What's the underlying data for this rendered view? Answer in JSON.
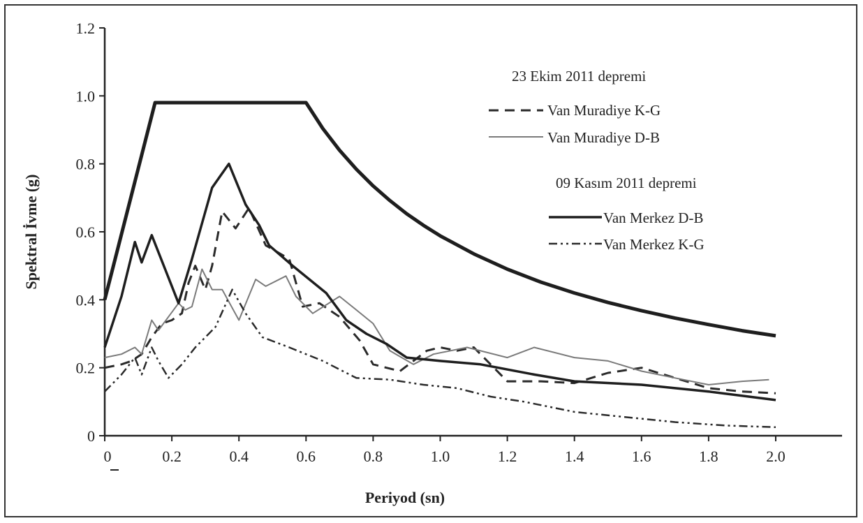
{
  "chart_data": {
    "type": "line",
    "title": "",
    "xlabel": "Periyod (sn)",
    "ylabel": "Spektral İvme (g)",
    "xlim": [
      0,
      2.2
    ],
    "ylim": [
      0,
      1.2
    ],
    "x_ticks": [
      0,
      0.2,
      0.4,
      0.6,
      0.8,
      1.0,
      1.2,
      1.4,
      1.6,
      1.8,
      2.0
    ],
    "x_tick_labels": [
      "0",
      "0.2",
      "0.4",
      "0.6",
      "0.8",
      "1.0",
      "1.2",
      "1.4",
      "1.6",
      "1.8",
      "2.0"
    ],
    "y_ticks": [
      0,
      0.2,
      0.4,
      0.6,
      0.8,
      1.0,
      1.2
    ],
    "y_tick_labels": [
      "0",
      "0.2",
      "0.4",
      "0.6",
      "0.8",
      "1.0",
      "1.2"
    ],
    "grid": false,
    "legend_position": "top-right",
    "legend_groups": [
      {
        "heading": "23 Ekim 2011 depremi",
        "series": [
          0,
          1
        ]
      },
      {
        "heading": "09 Kasım 2011 depremi",
        "series": [
          2,
          3
        ]
      }
    ],
    "series": [
      {
        "name": "Van Muradiye K-G",
        "style": "dashed",
        "color": "#2a2a2a",
        "points": [
          [
            0.0,
            0.2
          ],
          [
            0.05,
            0.21
          ],
          [
            0.08,
            0.22
          ],
          [
            0.11,
            0.24
          ],
          [
            0.14,
            0.29
          ],
          [
            0.17,
            0.33
          ],
          [
            0.2,
            0.34
          ],
          [
            0.23,
            0.36
          ],
          [
            0.25,
            0.45
          ],
          [
            0.27,
            0.5
          ],
          [
            0.3,
            0.43
          ],
          [
            0.32,
            0.5
          ],
          [
            0.35,
            0.66
          ],
          [
            0.39,
            0.61
          ],
          [
            0.43,
            0.67
          ],
          [
            0.48,
            0.56
          ],
          [
            0.55,
            0.52
          ],
          [
            0.59,
            0.38
          ],
          [
            0.64,
            0.39
          ],
          [
            0.7,
            0.35
          ],
          [
            0.76,
            0.28
          ],
          [
            0.8,
            0.21
          ],
          [
            0.88,
            0.19
          ],
          [
            0.96,
            0.25
          ],
          [
            1.0,
            0.26
          ],
          [
            1.05,
            0.25
          ],
          [
            1.1,
            0.26
          ],
          [
            1.15,
            0.21
          ],
          [
            1.2,
            0.16
          ],
          [
            1.3,
            0.16
          ],
          [
            1.4,
            0.155
          ],
          [
            1.5,
            0.185
          ],
          [
            1.6,
            0.2
          ],
          [
            1.7,
            0.17
          ],
          [
            1.8,
            0.14
          ],
          [
            1.9,
            0.13
          ],
          [
            2.0,
            0.125
          ]
        ]
      },
      {
        "name": "Van Muradiye D-B",
        "style": "thin",
        "color": "#7a7a7a",
        "points": [
          [
            0.0,
            0.23
          ],
          [
            0.05,
            0.24
          ],
          [
            0.09,
            0.26
          ],
          [
            0.11,
            0.24
          ],
          [
            0.14,
            0.34
          ],
          [
            0.16,
            0.31
          ],
          [
            0.19,
            0.35
          ],
          [
            0.22,
            0.39
          ],
          [
            0.24,
            0.37
          ],
          [
            0.26,
            0.38
          ],
          [
            0.29,
            0.49
          ],
          [
            0.32,
            0.43
          ],
          [
            0.35,
            0.43
          ],
          [
            0.4,
            0.34
          ],
          [
            0.45,
            0.46
          ],
          [
            0.48,
            0.44
          ],
          [
            0.54,
            0.47
          ],
          [
            0.57,
            0.41
          ],
          [
            0.62,
            0.36
          ],
          [
            0.7,
            0.41
          ],
          [
            0.75,
            0.37
          ],
          [
            0.8,
            0.33
          ],
          [
            0.85,
            0.25
          ],
          [
            0.92,
            0.21
          ],
          [
            0.98,
            0.24
          ],
          [
            1.08,
            0.26
          ],
          [
            1.2,
            0.23
          ],
          [
            1.28,
            0.26
          ],
          [
            1.4,
            0.23
          ],
          [
            1.5,
            0.22
          ],
          [
            1.6,
            0.19
          ],
          [
            1.7,
            0.17
          ],
          [
            1.8,
            0.15
          ],
          [
            1.9,
            0.16
          ],
          [
            1.98,
            0.165
          ]
        ]
      },
      {
        "name": "Van Merkez D-B",
        "style": "thick",
        "color": "#1e1e1e",
        "points": [
          [
            0.0,
            0.26
          ],
          [
            0.05,
            0.41
          ],
          [
            0.09,
            0.57
          ],
          [
            0.11,
            0.51
          ],
          [
            0.14,
            0.59
          ],
          [
            0.18,
            0.49
          ],
          [
            0.22,
            0.39
          ],
          [
            0.26,
            0.52
          ],
          [
            0.32,
            0.73
          ],
          [
            0.37,
            0.8
          ],
          [
            0.42,
            0.68
          ],
          [
            0.46,
            0.62
          ],
          [
            0.49,
            0.56
          ],
          [
            0.56,
            0.5
          ],
          [
            0.66,
            0.42
          ],
          [
            0.72,
            0.34
          ],
          [
            0.78,
            0.3
          ],
          [
            0.84,
            0.27
          ],
          [
            0.9,
            0.23
          ],
          [
            1.0,
            0.22
          ],
          [
            1.12,
            0.21
          ],
          [
            1.28,
            0.18
          ],
          [
            1.4,
            0.16
          ],
          [
            1.6,
            0.15
          ],
          [
            1.8,
            0.13
          ],
          [
            2.0,
            0.105
          ]
        ]
      },
      {
        "name": "Van Merkez K-G",
        "style": "dash-dot-dot",
        "color": "#2a2a2a",
        "points": [
          [
            0.0,
            0.13
          ],
          [
            0.05,
            0.18
          ],
          [
            0.09,
            0.23
          ],
          [
            0.11,
            0.18
          ],
          [
            0.14,
            0.26
          ],
          [
            0.16,
            0.22
          ],
          [
            0.19,
            0.17
          ],
          [
            0.23,
            0.21
          ],
          [
            0.27,
            0.26
          ],
          [
            0.33,
            0.32
          ],
          [
            0.38,
            0.43
          ],
          [
            0.42,
            0.36
          ],
          [
            0.47,
            0.29
          ],
          [
            0.55,
            0.26
          ],
          [
            0.65,
            0.22
          ],
          [
            0.75,
            0.17
          ],
          [
            0.85,
            0.165
          ],
          [
            0.95,
            0.15
          ],
          [
            1.05,
            0.14
          ],
          [
            1.15,
            0.115
          ],
          [
            1.25,
            0.1
          ],
          [
            1.4,
            0.07
          ],
          [
            1.55,
            0.055
          ],
          [
            1.7,
            0.04
          ],
          [
            1.85,
            0.03
          ],
          [
            2.0,
            0.025
          ]
        ]
      },
      {
        "name": "",
        "style": "very-thick",
        "color": "#1e1e1e",
        "points": [
          [
            0.0,
            0.4
          ],
          [
            0.15,
            0.98
          ],
          [
            0.6,
            0.98
          ],
          [
            0.65,
            0.904
          ],
          [
            0.7,
            0.84
          ],
          [
            0.75,
            0.784
          ],
          [
            0.8,
            0.735
          ],
          [
            0.85,
            0.692
          ],
          [
            0.9,
            0.653
          ],
          [
            0.95,
            0.619
          ],
          [
            1.0,
            0.588
          ],
          [
            1.1,
            0.535
          ],
          [
            1.2,
            0.49
          ],
          [
            1.3,
            0.452
          ],
          [
            1.4,
            0.42
          ],
          [
            1.5,
            0.392
          ],
          [
            1.6,
            0.368
          ],
          [
            1.7,
            0.346
          ],
          [
            1.8,
            0.327
          ],
          [
            1.9,
            0.309
          ],
          [
            2.0,
            0.294
          ]
        ]
      }
    ]
  }
}
